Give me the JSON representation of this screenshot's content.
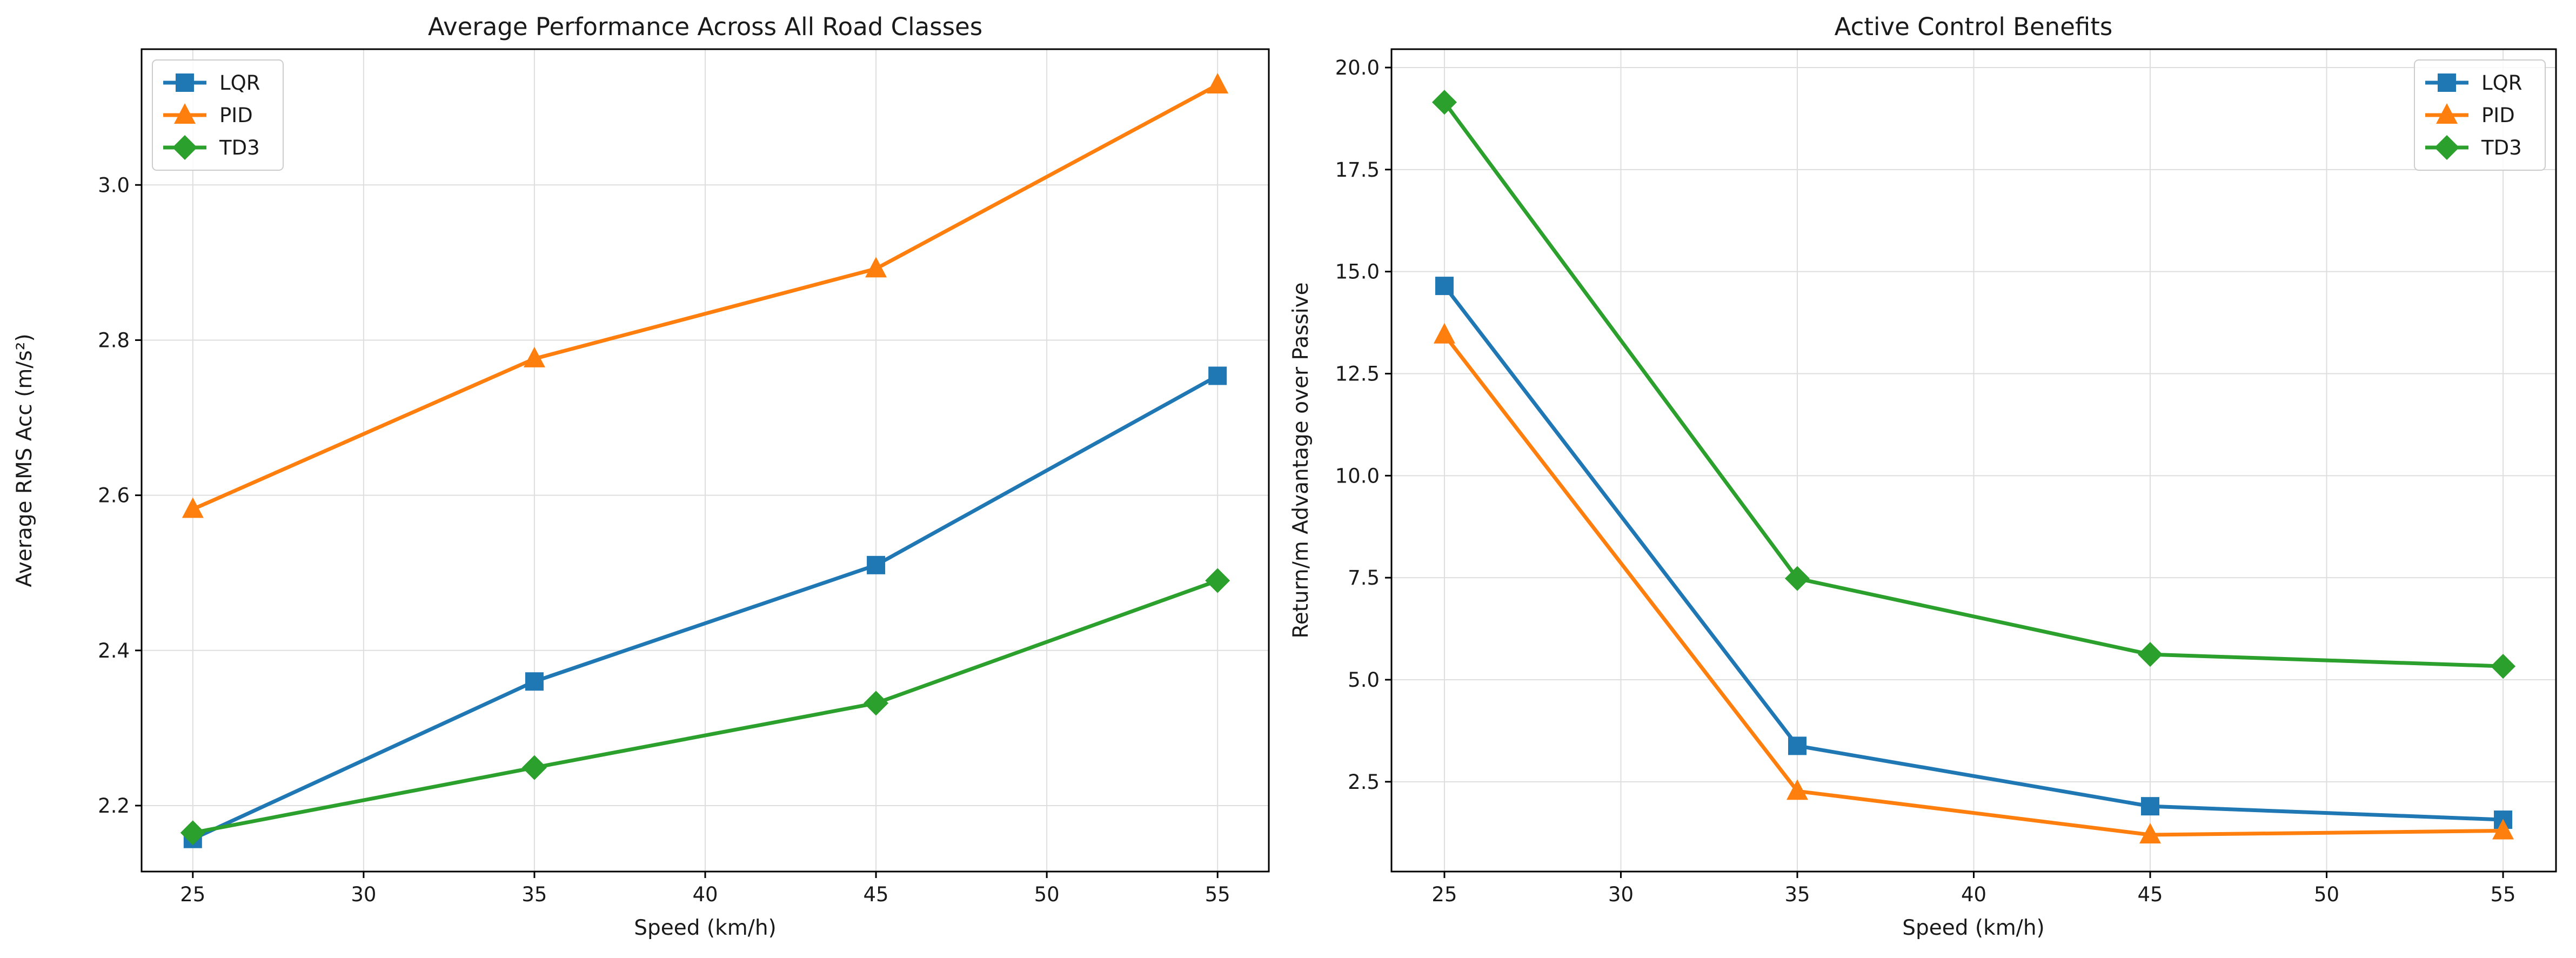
{
  "chart_data": [
    {
      "type": "line",
      "title": "Average Performance Across All Road Classes",
      "xlabel": "Speed (km/h)",
      "ylabel": "Average RMS Acc (m/s²)",
      "x": [
        25,
        35,
        45,
        55
      ],
      "xlim": [
        23.5,
        56.5
      ],
      "ylim": [
        2.115,
        3.175
      ],
      "xticks": [
        25,
        30,
        35,
        40,
        45,
        50,
        55
      ],
      "yticks": [
        2.2,
        2.4,
        2.6,
        2.8,
        3.0
      ],
      "ytick_decimals": 1,
      "grid": true,
      "legend_position": "top-left",
      "series": [
        {
          "name": "LQR",
          "color": "#1f77b4",
          "marker": "square",
          "values": [
            2.157,
            2.36,
            2.51,
            2.754
          ]
        },
        {
          "name": "PID",
          "color": "#ff7f0e",
          "marker": "triangle",
          "values": [
            2.582,
            2.776,
            2.892,
            3.129
          ]
        },
        {
          "name": "TD3",
          "color": "#2ca02c",
          "marker": "diamond",
          "values": [
            2.165,
            2.249,
            2.332,
            2.49
          ]
        }
      ]
    },
    {
      "type": "line",
      "title": "Active Control Benefits",
      "xlabel": "Speed (km/h)",
      "ylabel": "Return/m Advantage over Passive",
      "x": [
        25,
        35,
        45,
        55
      ],
      "xlim": [
        23.5,
        56.5
      ],
      "ylim": [
        0.3,
        20.45
      ],
      "xticks": [
        25,
        30,
        35,
        40,
        45,
        50,
        55
      ],
      "yticks": [
        2.5,
        5.0,
        7.5,
        10.0,
        12.5,
        15.0,
        17.5,
        20.0
      ],
      "ytick_decimals": 1,
      "grid": true,
      "legend_position": "top-right",
      "series": [
        {
          "name": "LQR",
          "color": "#1f77b4",
          "marker": "square",
          "values": [
            14.65,
            3.38,
            1.9,
            1.57
          ]
        },
        {
          "name": "PID",
          "color": "#ff7f0e",
          "marker": "triangle",
          "values": [
            13.45,
            2.27,
            1.2,
            1.3
          ]
        },
        {
          "name": "TD3",
          "color": "#2ca02c",
          "marker": "diamond",
          "values": [
            19.15,
            7.48,
            5.62,
            5.33
          ]
        }
      ]
    }
  ]
}
